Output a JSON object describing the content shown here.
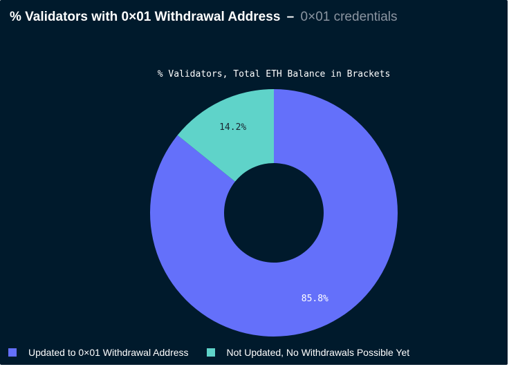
{
  "header": {
    "title": "% Validators with 0×01 Withdrawal Address",
    "separator": "–",
    "subtitle": "0×01 credentials"
  },
  "chart_data": {
    "type": "pie",
    "donut": true,
    "title": "% Validators, Total ETH Balance in Brackets",
    "legend_position": "bottom-left",
    "slices": [
      {
        "label": "Updated to 0×01 Withdrawal Address",
        "value": 85.8,
        "display": "85.8%",
        "color": "#6470fa"
      },
      {
        "label": "Not Updated, No Withdrawals Possible Yet",
        "value": 14.2,
        "display": "14.2%",
        "color": "#5fd3c9"
      }
    ]
  },
  "colors": {
    "background": "#001a2c",
    "text": "#ffffff",
    "muted": "#8b95a1"
  }
}
